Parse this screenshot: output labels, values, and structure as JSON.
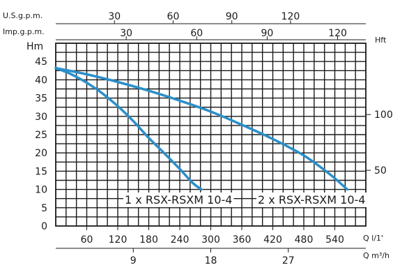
{
  "chart_data": {
    "type": "line",
    "title": "",
    "colors": {
      "curve": "#2a8fc9",
      "grid": "#1a1a1a",
      "background": "#ffffff"
    },
    "grid": true,
    "axes": {
      "bottom_primary": {
        "label": "Q l/1'",
        "ticks": [
          60,
          120,
          180,
          240,
          300,
          360,
          420,
          480,
          540
        ],
        "range": [
          0,
          600
        ]
      },
      "bottom_secondary": {
        "label": "Q m³/h",
        "ticks": [
          9,
          18,
          27
        ],
        "range": [
          0,
          36
        ]
      },
      "top_us": {
        "label": "U.S.g.p.m.",
        "ticks": [
          30,
          60,
          90,
          120
        ],
        "range": [
          0,
          158.5
        ]
      },
      "top_imp": {
        "label": "Imp.g.p.m.",
        "ticks": [
          30,
          60,
          90,
          120
        ],
        "range": [
          0,
          132
        ]
      },
      "left": {
        "label": "Hm",
        "ticks": [
          0,
          5,
          10,
          15,
          20,
          25,
          30,
          35,
          40,
          45
        ],
        "range": [
          0,
          50
        ]
      },
      "right": {
        "label": "Hft",
        "ticks": [
          50,
          100
        ],
        "range": [
          0,
          164
        ]
      }
    },
    "series": [
      {
        "name": "1 x RSX-RSXM 10-4",
        "x": [
          0,
          30,
          60,
          90,
          120,
          150,
          180,
          210,
          240,
          265,
          282
        ],
        "y": [
          43.2,
          41.5,
          39.2,
          36.3,
          32.8,
          28.7,
          24.1,
          19.9,
          15.6,
          11.8,
          10
        ]
      },
      {
        "name": "2 x RSX-RSXM 10-4",
        "x": [
          0,
          60,
          120,
          180,
          240,
          300,
          360,
          420,
          480,
          530,
          564
        ],
        "y": [
          43.2,
          41.5,
          39.4,
          37,
          34.3,
          31.3,
          27.7,
          23.8,
          19.3,
          14.2,
          10
        ]
      }
    ]
  }
}
